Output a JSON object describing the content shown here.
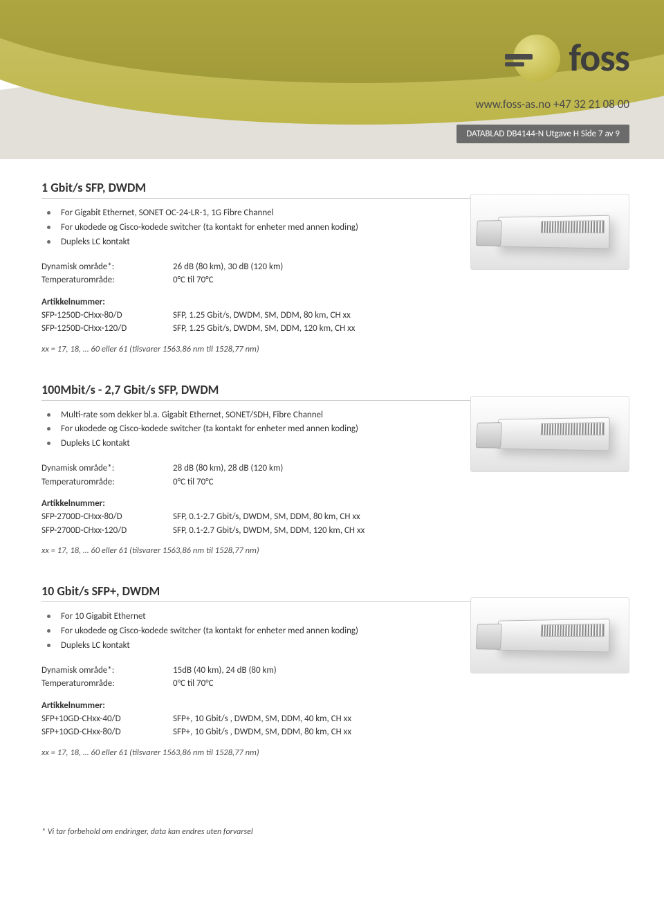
{
  "header": {
    "logo_text": "foss",
    "contact": "www.foss-as.no +47 32 21 08 00",
    "badge": "DATABLAD DB4144-N Utgave H Side 7 av 9"
  },
  "sections": [
    {
      "title": "1 Gbit/s SFP, DWDM",
      "bullets": [
        "For Gigabit Ethernet, SONET OC-24-LR-1, 1G Fibre Channel",
        "For ukodede og Cisco-kodede switcher (ta kontakt for enheter med annen koding)",
        "Dupleks LC kontakt"
      ],
      "specs": [
        {
          "label": "Dynamisk område*:",
          "value": "26 dB (80 km), 30 dB (120 km)"
        },
        {
          "label": "Temperaturområde:",
          "value": "0°C til 70°C"
        }
      ],
      "art_header": "Artikkelnummer:",
      "articles": [
        {
          "code": "SFP-1250D-CHxx-80/D",
          "desc": "SFP, 1.25 Gbit/s, DWDM, SM, DDM, 80 km, CH xx"
        },
        {
          "code": "SFP-1250D-CHxx-120/D",
          "desc": "SFP, 1.25 Gbit/s, DWDM, SM, DDM, 120 km, CH xx"
        }
      ],
      "footnote": "xx = 17, 18, … 60 eller 61 (tilsvarer 1563,86 nm til 1528,77 nm)"
    },
    {
      "title": "100Mbit/s - 2,7 Gbit/s SFP, DWDM",
      "bullets": [
        "Multi-rate som dekker bl.a. Gigabit Ethernet, SONET/SDH, Fibre Channel",
        "For ukodede og Cisco-kodede switcher (ta kontakt for enheter med annen koding)",
        "Dupleks LC kontakt"
      ],
      "specs": [
        {
          "label": "Dynamisk område*:",
          "value": "28 dB (80 km), 28 dB (120 km)"
        },
        {
          "label": "Temperaturområde:",
          "value": "0°C til 70°C"
        }
      ],
      "art_header": "Artikkelnummer:",
      "articles": [
        {
          "code": "SFP-2700D-CHxx-80/D",
          "desc": "SFP, 0.1-2.7 Gbit/s, DWDM, SM, DDM, 80 km, CH xx"
        },
        {
          "code": "SFP-2700D-CHxx-120/D",
          "desc": "SFP, 0.1-2.7 Gbit/s, DWDM, SM, DDM, 120 km, CH xx"
        }
      ],
      "footnote": "xx = 17, 18, … 60 eller 61 (tilsvarer 1563,86 nm til 1528,77 nm)"
    },
    {
      "title": "10 Gbit/s SFP+, DWDM",
      "bullets": [
        "For 10 Gigabit Ethernet",
        "For ukodede og Cisco-kodede switcher (ta kontakt for enheter med annen koding)",
        "Dupleks LC kontakt"
      ],
      "specs": [
        {
          "label": "Dynamisk område*:",
          "value": "15dB (40 km), 24 dB (80 km)"
        },
        {
          "label": "Temperaturområde:",
          "value": "0°C til 70°C"
        }
      ],
      "art_header": "Artikkelnummer:",
      "articles": [
        {
          "code": "SFP+10GD-CHxx-40/D",
          "desc": "SFP+, 10 Gbit/s , DWDM, SM, DDM, 40 km, CH xx"
        },
        {
          "code": "SFP+10GD-CHxx-80/D",
          "desc": "SFP+, 10 Gbit/s , DWDM, SM, DDM, 80 km, CH xx"
        }
      ],
      "footnote": "xx = 17, 18, … 60 eller 61 (tilsvarer 1563,86 nm til 1528,77 nm)"
    }
  ],
  "page_footnote": "* Vi tar forbehold om endringer, data kan endres uten forvarsel",
  "colors": {
    "accent_olive": "#b6ad32",
    "badge_bg": "#6b6b6b",
    "text": "#333333",
    "rule": "#c8c8c8"
  }
}
